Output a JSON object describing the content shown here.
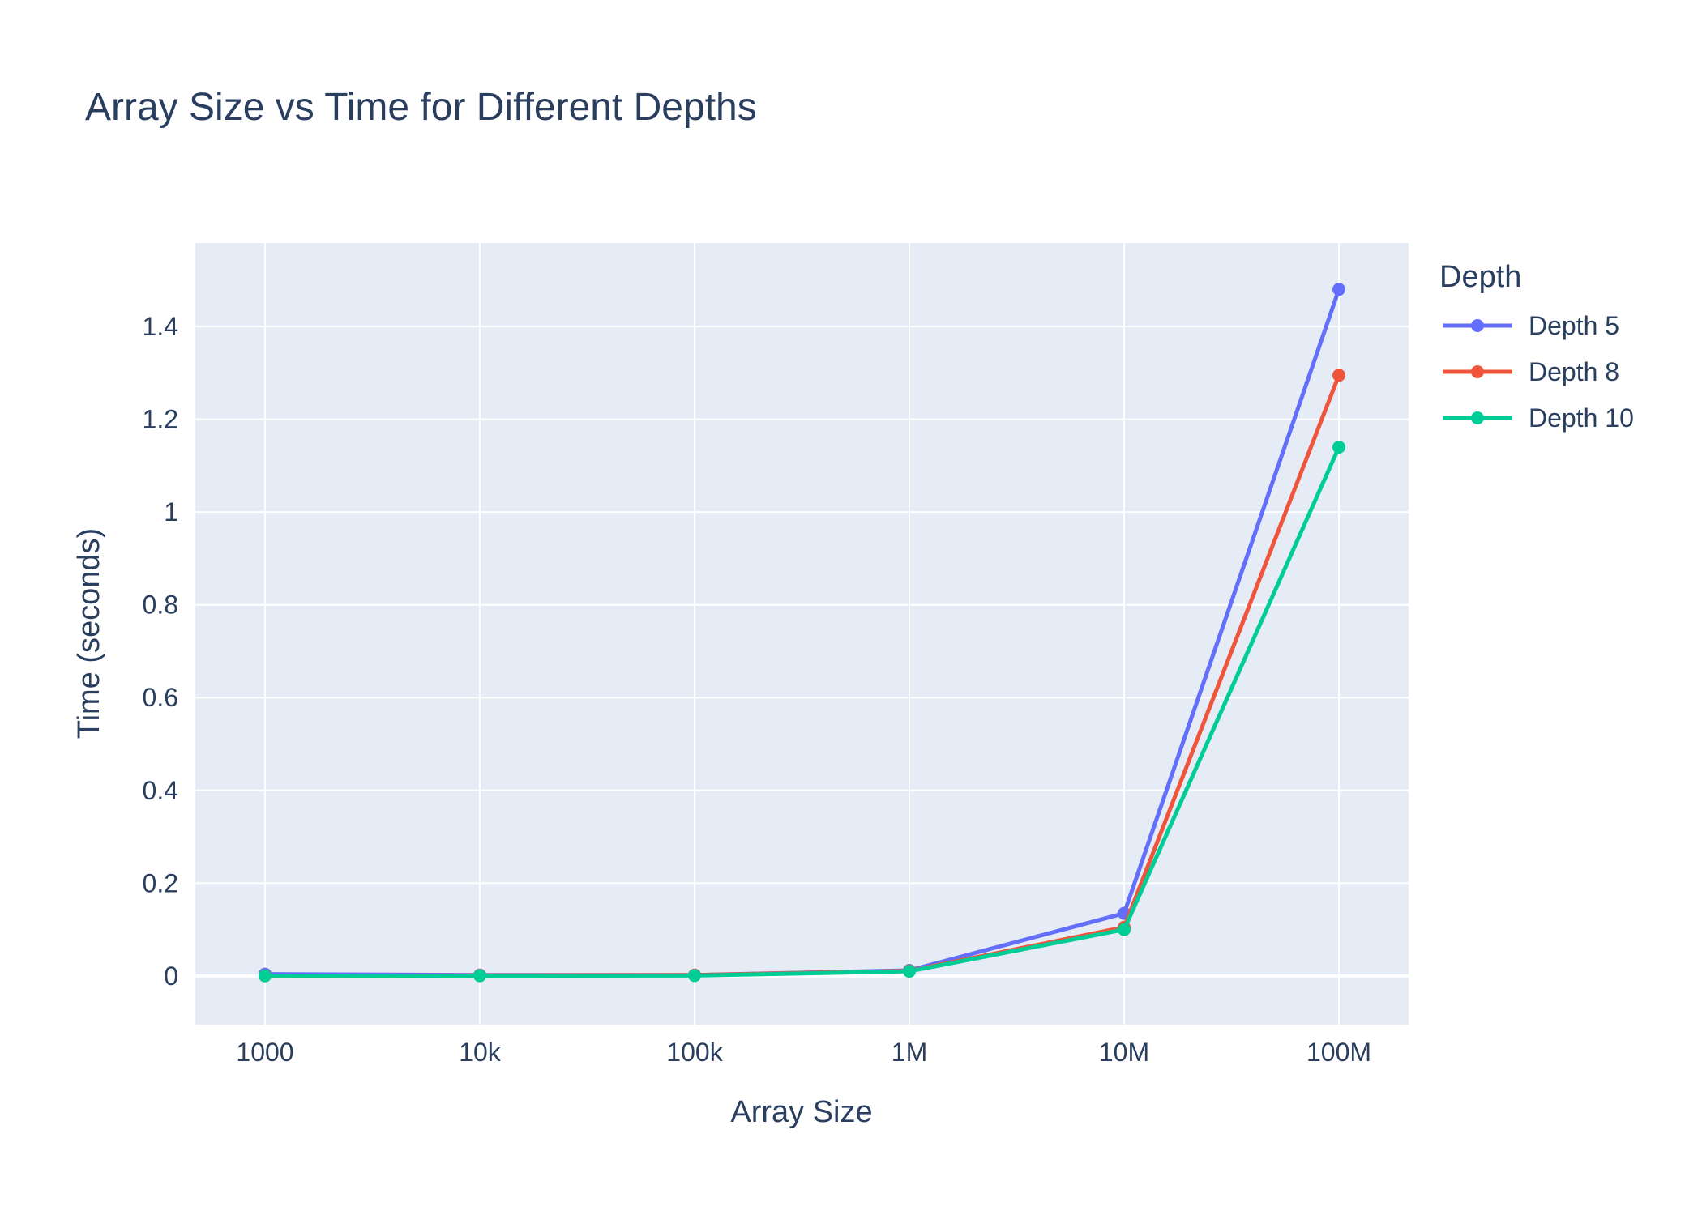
{
  "chart_data": {
    "type": "line",
    "title": "Array Size vs Time for Different Depths",
    "xlabel": "Array Size",
    "ylabel": "Time (seconds)",
    "x_scale": "log",
    "x": [
      1000,
      10000,
      100000,
      1000000,
      10000000,
      100000000
    ],
    "x_tick_labels": [
      "1000",
      "10k",
      "100k",
      "1M",
      "10M",
      "100M"
    ],
    "ylim": [
      -0.105,
      1.58
    ],
    "y_ticks": [
      0,
      0.2,
      0.4,
      0.6,
      0.8,
      1,
      1.2,
      1.4
    ],
    "y_tick_labels": [
      "0",
      "0.2",
      "0.4",
      "0.6",
      "0.8",
      "1",
      "1.2",
      "1.4"
    ],
    "grid": true,
    "legend_title": "Depth",
    "legend_position": "right",
    "series": [
      {
        "name": "Depth 5",
        "color": "#636efa",
        "values": [
          0.004,
          0.002,
          0.002,
          0.012,
          0.135,
          1.48
        ]
      },
      {
        "name": "Depth 8",
        "color": "#ef553b",
        "values": [
          0.0005,
          0.001,
          0.002,
          0.011,
          0.105,
          1.295
        ]
      },
      {
        "name": "Depth 10",
        "color": "#00cc96",
        "values": [
          0.0002,
          0.0005,
          0.0008,
          0.01,
          0.1,
          1.14
        ]
      }
    ],
    "colors": {
      "plot_background": "#e5ecf6",
      "grid": "#ffffff",
      "text": "#2a3f5f"
    }
  }
}
